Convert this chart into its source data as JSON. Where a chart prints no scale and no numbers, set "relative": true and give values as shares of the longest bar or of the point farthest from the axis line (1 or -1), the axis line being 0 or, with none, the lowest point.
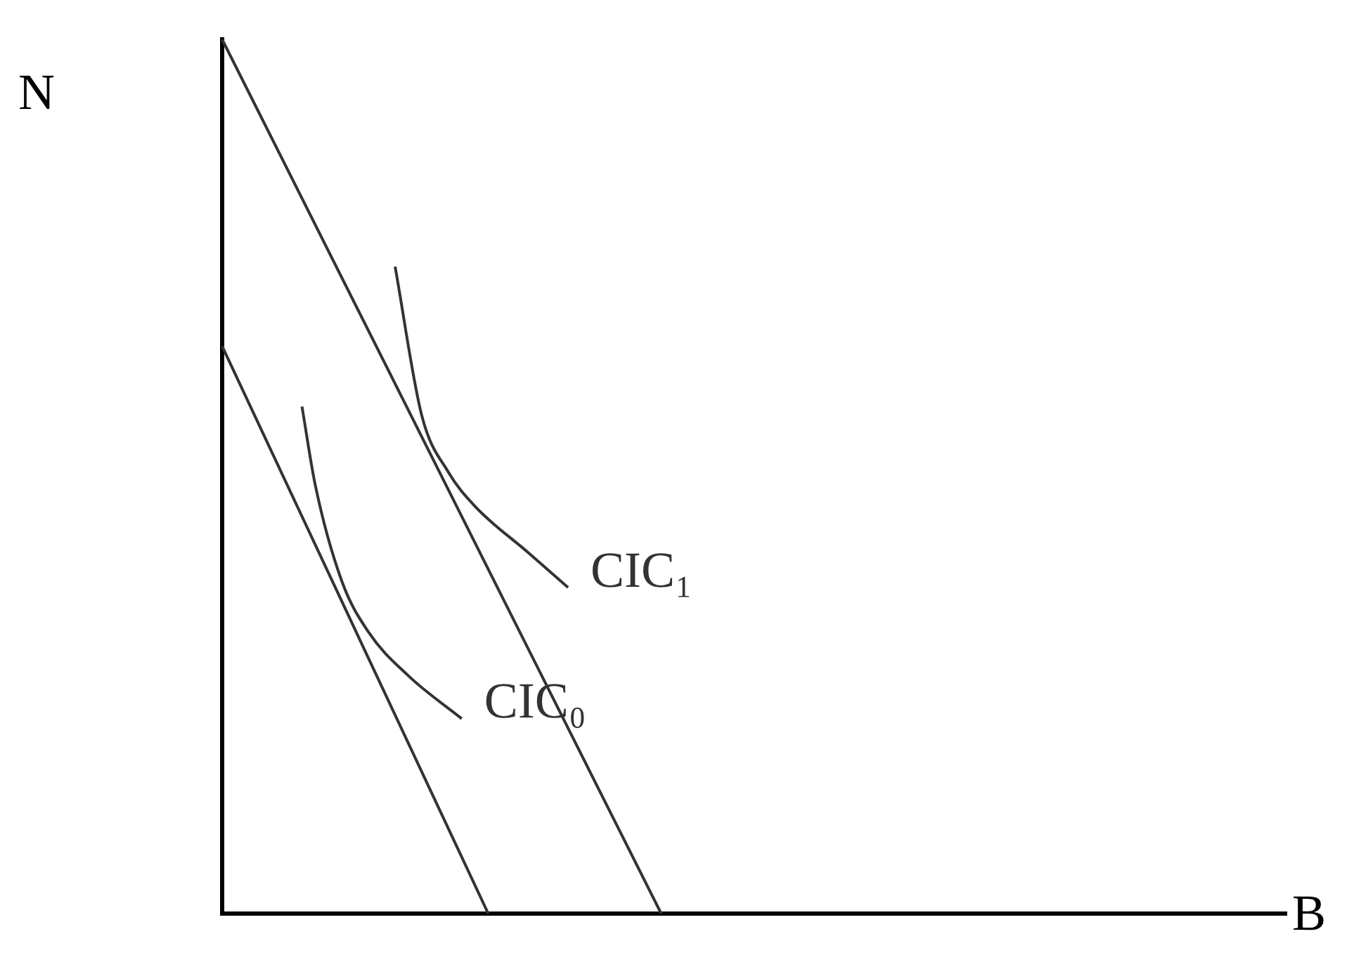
{
  "chart_data": {
    "type": "line",
    "relative": true,
    "xlabel": "B",
    "ylabel": "N",
    "legend": false,
    "grid": false,
    "marker": "none",
    "categories": [
      null,
      null,
      null,
      null,
      null,
      null,
      null,
      null,
      null,
      null,
      null,
      null,
      null,
      null,
      null,
      null,
      null,
      null,
      null,
      null,
      null,
      null,
      null,
      null,
      null,
      null,
      null,
      null,
      null,
      null,
      null,
      null,
      null,
      null,
      null,
      null,
      null,
      null,
      null,
      null,
      null,
      null,
      null,
      null,
      null,
      null,
      null,
      null,
      null,
      null,
      null,
      null,
      null,
      null,
      null,
      null,
      null,
      null,
      null,
      null,
      null,
      null,
      null,
      null,
      null,
      null,
      null,
      null,
      null,
      null,
      null,
      null,
      null,
      null,
      null,
      null,
      null,
      null,
      null,
      null,
      null
    ],
    "series": [
      {
        "color": "#333333",
        "values": [
          1,
          null,
          null,
          null,
          null,
          null,
          null,
          null,
          null,
          null,
          null,
          null,
          null,
          null,
          null,
          null,
          null,
          null,
          null,
          null,
          null,
          null,
          null,
          null,
          null,
          null,
          null,
          null,
          null,
          null,
          null,
          null,
          null,
          0,
          null,
          null,
          null,
          null,
          null,
          null,
          null,
          null,
          null,
          null,
          null,
          null,
          null,
          null,
          null,
          null,
          null,
          null,
          null,
          null,
          null,
          null,
          null,
          null,
          null,
          null,
          null,
          null,
          null,
          null,
          null,
          null,
          null,
          null,
          null,
          null,
          null,
          null,
          null,
          null,
          null,
          null,
          null,
          null,
          null,
          null,
          null
        ]
      },
      {
        "color": "#333333",
        "values": [
          0.649,
          null,
          null,
          null,
          null,
          null,
          null,
          null,
          null,
          null,
          null,
          null,
          null,
          null,
          null,
          null,
          null,
          null,
          null,
          null,
          0,
          null,
          null,
          null,
          null,
          null,
          null,
          null,
          null,
          null,
          null,
          null,
          null,
          null,
          null,
          null,
          null,
          null,
          null,
          null,
          null,
          null,
          null,
          null,
          null,
          null,
          null,
          null,
          null,
          null,
          null,
          null,
          null,
          null,
          null,
          null,
          null,
          null,
          null,
          null,
          null,
          null,
          null,
          null,
          null,
          null,
          null,
          null,
          null,
          null,
          null,
          null,
          null,
          null,
          null,
          null,
          null,
          null,
          null,
          null,
          null
        ]
      },
      {
        "name": "CIC₁",
        "color": "#333333",
        "values": [
          null,
          null,
          null,
          null,
          null,
          null,
          null,
          null,
          null,
          null,
          null,
          null,
          null,
          0.74,
          null,
          0.57,
          null,
          0.505,
          null,
          0.466,
          null,
          null,
          null,
          0.413,
          null,
          null,
          0.373,
          null,
          null,
          null,
          null,
          null,
          null,
          null,
          null,
          null,
          null,
          null,
          null,
          null,
          null,
          null,
          null,
          null,
          null,
          null,
          null,
          null,
          null,
          null,
          null,
          null,
          null,
          null,
          null,
          null,
          null,
          null,
          null,
          null,
          null,
          null,
          null,
          null,
          null,
          null,
          null,
          null,
          null,
          null,
          null,
          null,
          null,
          null,
          null,
          null,
          null,
          null,
          null,
          null,
          null
        ]
      },
      {
        "name": "CIC₀",
        "color": "#333333",
        "values": [
          null,
          null,
          null,
          null,
          null,
          null,
          0.58,
          0.49,
          null,
          0.38,
          null,
          0.322,
          null,
          null,
          0.272,
          null,
          null,
          null,
          0.223,
          null,
          null,
          null,
          null,
          null,
          null,
          null,
          null,
          null,
          null,
          null,
          null,
          null,
          null,
          null,
          null,
          null,
          null,
          null,
          null,
          null,
          null,
          null,
          null,
          null,
          null,
          null,
          null,
          null,
          null,
          null,
          null,
          null,
          null,
          null,
          null,
          null,
          null,
          null,
          null,
          null,
          null,
          null,
          null,
          null,
          null,
          null,
          null,
          null,
          null,
          null,
          null,
          null,
          null,
          null,
          null,
          null,
          null,
          null,
          null,
          null,
          null
        ]
      }
    ]
  }
}
